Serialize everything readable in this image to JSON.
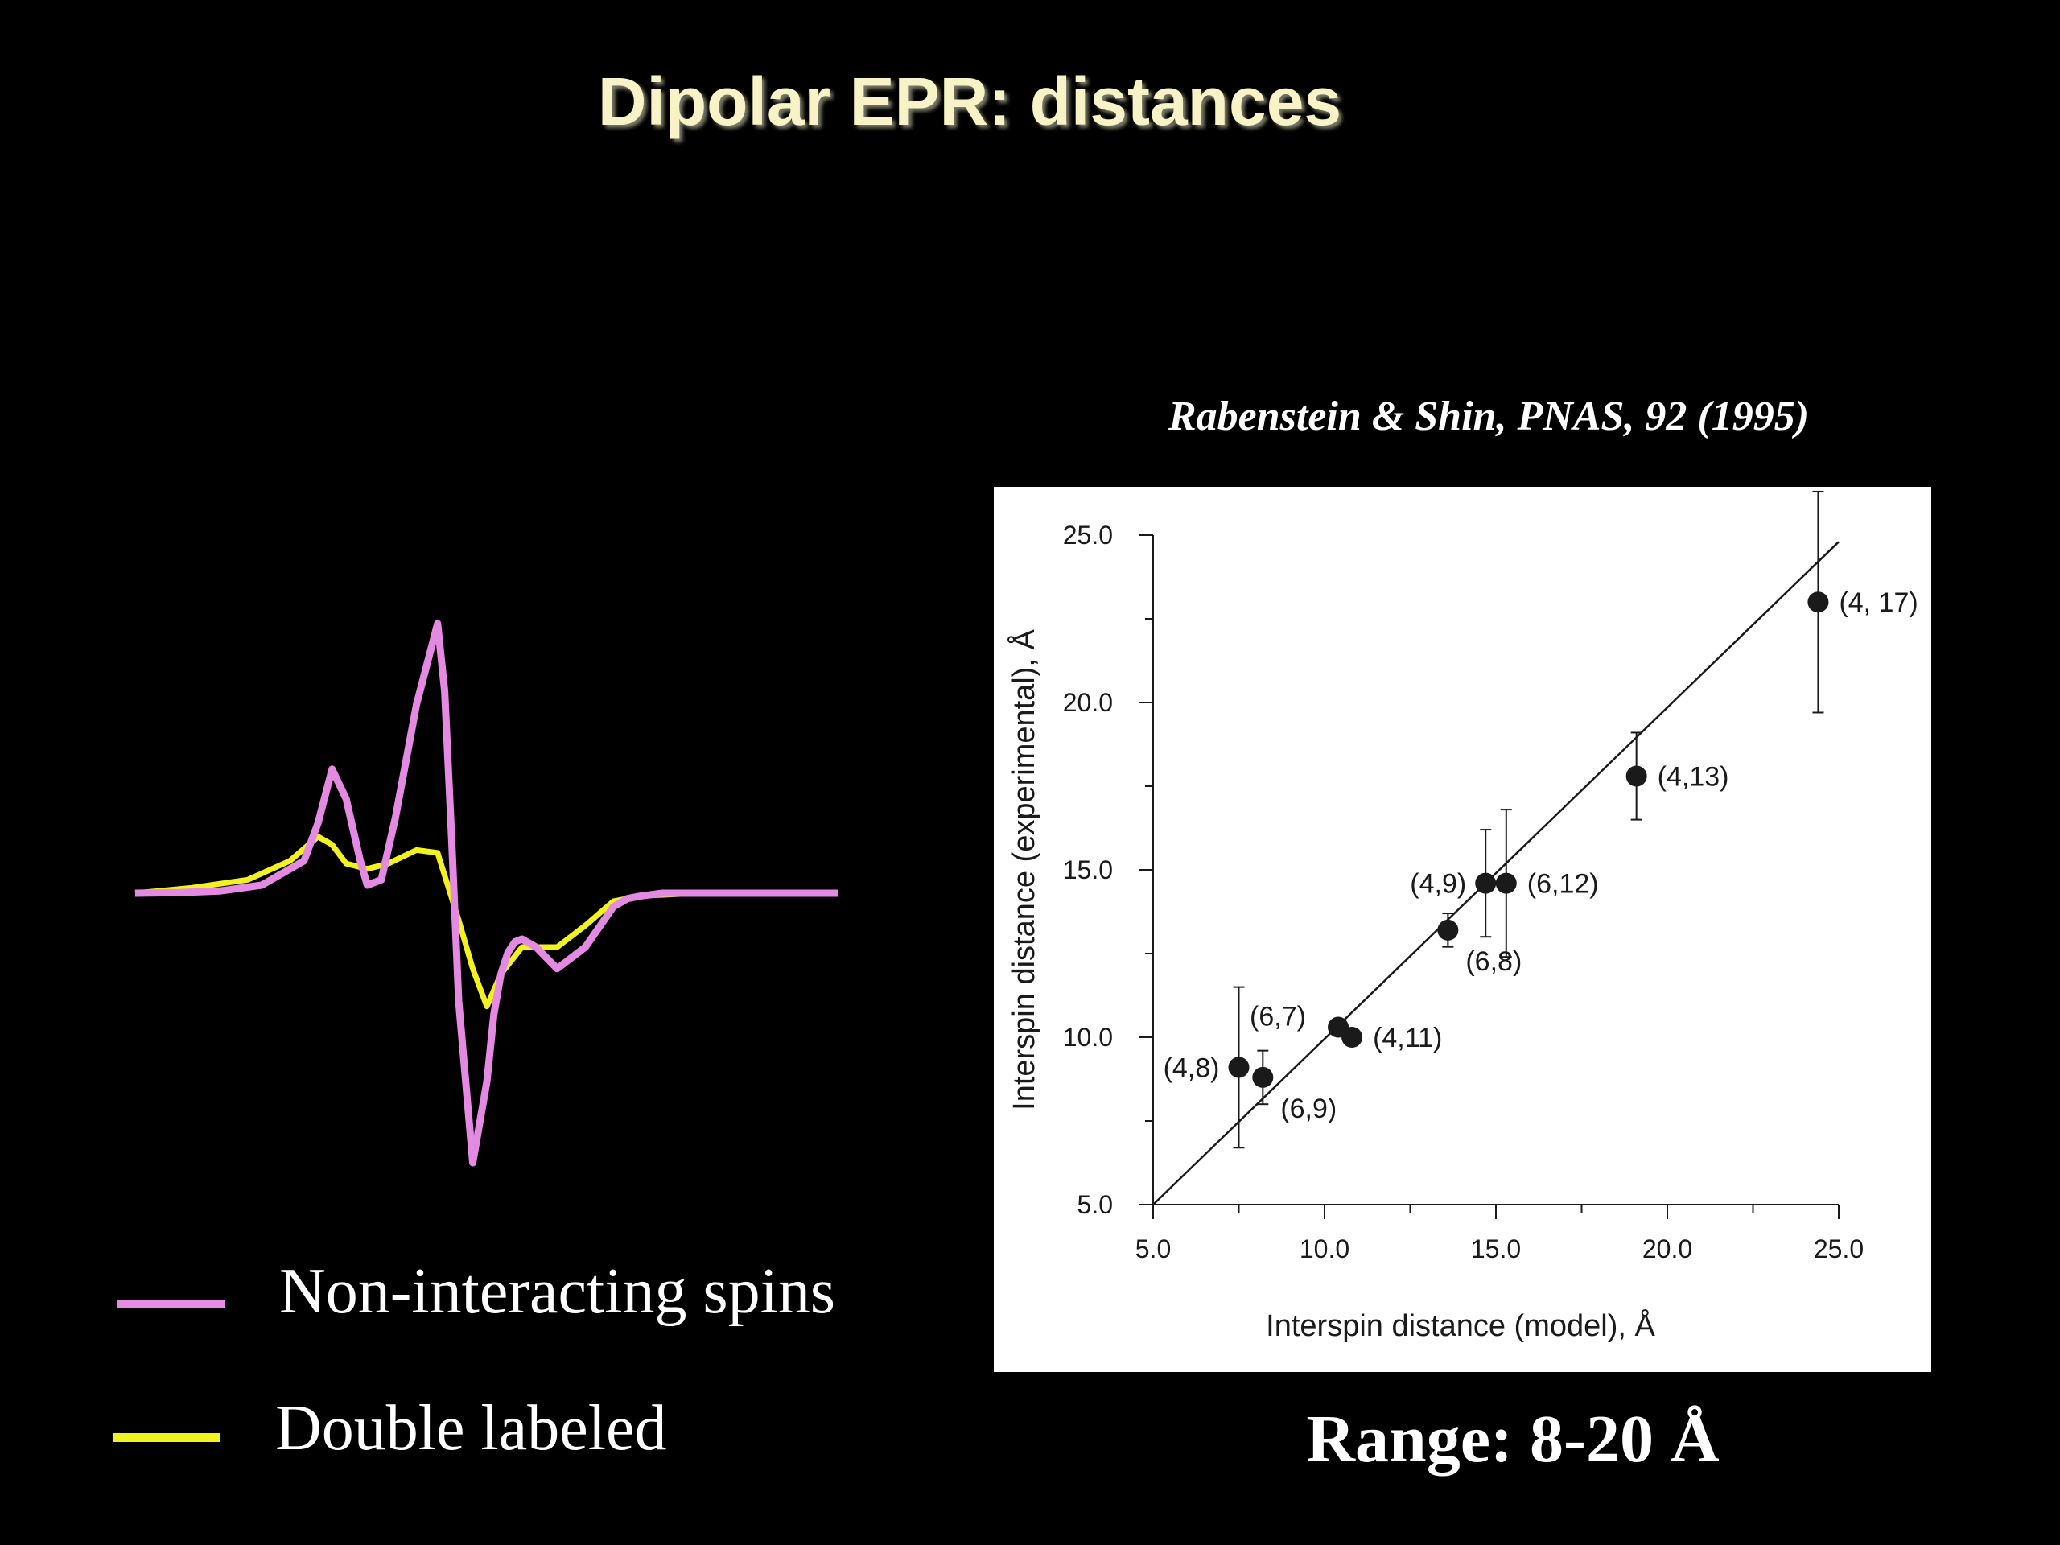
{
  "title": "Dipolar EPR: distances",
  "citation": "Rabenstein & Shin, PNAS, 92 (1995)",
  "range_text": "Range: 8-20 Å",
  "colors": {
    "background": "#000000",
    "title": "#f7f3c6",
    "non_interacting": "#e58ae3",
    "double_labeled": "#f2f21e",
    "plot_background": "#ffffff",
    "plot_ink": "#1a1a1a"
  },
  "legend": [
    {
      "label": "Non-interacting spins",
      "color": "#e58ae3"
    },
    {
      "label": "Double labeled",
      "color": "#f2f21e"
    }
  ],
  "chart_data": [
    {
      "type": "line",
      "title": "",
      "xlabel": "",
      "ylabel": "",
      "axes_visible": false,
      "grid": false,
      "series": [
        {
          "name": "Non-interacting spins",
          "color": "#e58ae3",
          "x": [
            0,
            0.06,
            0.12,
            0.18,
            0.24,
            0.26,
            0.28,
            0.3,
            0.32,
            0.33,
            0.35,
            0.37,
            0.4,
            0.43,
            0.44,
            0.45,
            0.46,
            0.48,
            0.5,
            0.51,
            0.52,
            0.53,
            0.54,
            0.55,
            0.57,
            0.6,
            0.64,
            0.68,
            0.7,
            0.72,
            0.75,
            0.8,
            0.86,
            0.92,
            1.0
          ],
          "y": [
            0,
            0.002,
            0.008,
            0.03,
            0.12,
            0.26,
            0.46,
            0.35,
            0.12,
            0.03,
            0.05,
            0.28,
            0.7,
            1.0,
            0.75,
            0.2,
            -0.4,
            -1.0,
            -0.7,
            -0.45,
            -0.3,
            -0.22,
            -0.18,
            -0.17,
            -0.2,
            -0.28,
            -0.2,
            -0.05,
            -0.02,
            -0.01,
            0,
            0,
            0,
            0,
            0
          ]
        },
        {
          "name": "Double labeled",
          "color": "#f2f21e",
          "x": [
            0,
            0.08,
            0.16,
            0.22,
            0.26,
            0.28,
            0.3,
            0.33,
            0.36,
            0.4,
            0.43,
            0.46,
            0.48,
            0.5,
            0.52,
            0.55,
            0.6,
            0.64,
            0.68,
            0.72,
            0.8,
            0.9,
            1.0
          ],
          "y": [
            0,
            0.02,
            0.05,
            0.12,
            0.21,
            0.18,
            0.11,
            0.09,
            0.11,
            0.16,
            0.15,
            -0.1,
            -0.28,
            -0.42,
            -0.3,
            -0.2,
            -0.2,
            -0.12,
            -0.03,
            -0.01,
            0,
            0,
            0
          ]
        }
      ]
    },
    {
      "type": "scatter",
      "title": "",
      "xlabel": "Interspin distance (model), Å",
      "ylabel": "Interspin distance (experimental), Å",
      "xlim": [
        5.0,
        25.0
      ],
      "ylim": [
        5.0,
        25.0
      ],
      "xticks": [
        "5.0",
        "10.0",
        "15.0",
        "20.0",
        "25.0"
      ],
      "yticks": [
        "5.0",
        "10.0",
        "15.0",
        "20.0",
        "25.0"
      ],
      "grid": false,
      "reference_line": {
        "x": [
          5.0,
          25.0
        ],
        "y": [
          5.0,
          24.8
        ]
      },
      "points": [
        {
          "label": "(4,8)",
          "x": 7.5,
          "y": 9.1,
          "err": 2.4,
          "label_side": "left"
        },
        {
          "label": "(6,9)",
          "x": 8.2,
          "y": 8.8,
          "err": 0.8,
          "label_side": "below-right"
        },
        {
          "label": "(6,7)",
          "x": 10.4,
          "y": 10.3,
          "err": 0.0,
          "label_side": "above-left"
        },
        {
          "label": "(4,11)",
          "x": 10.8,
          "y": 10.0,
          "err": 0.0,
          "label_side": "right"
        },
        {
          "label": "(6,8)",
          "x": 13.6,
          "y": 13.2,
          "err": 0.5,
          "label_side": "below-right"
        },
        {
          "label": "(4,9)",
          "x": 14.7,
          "y": 14.6,
          "err": 1.6,
          "label_side": "left"
        },
        {
          "label": "(6,12)",
          "x": 15.3,
          "y": 14.6,
          "err": 2.2,
          "label_side": "right"
        },
        {
          "label": "(4,13)",
          "x": 19.1,
          "y": 17.8,
          "err": 1.3,
          "label_side": "right"
        },
        {
          "label": "(4, 17)",
          "x": 24.4,
          "y": 23.0,
          "err": 3.3,
          "label_side": "right"
        }
      ]
    }
  ]
}
